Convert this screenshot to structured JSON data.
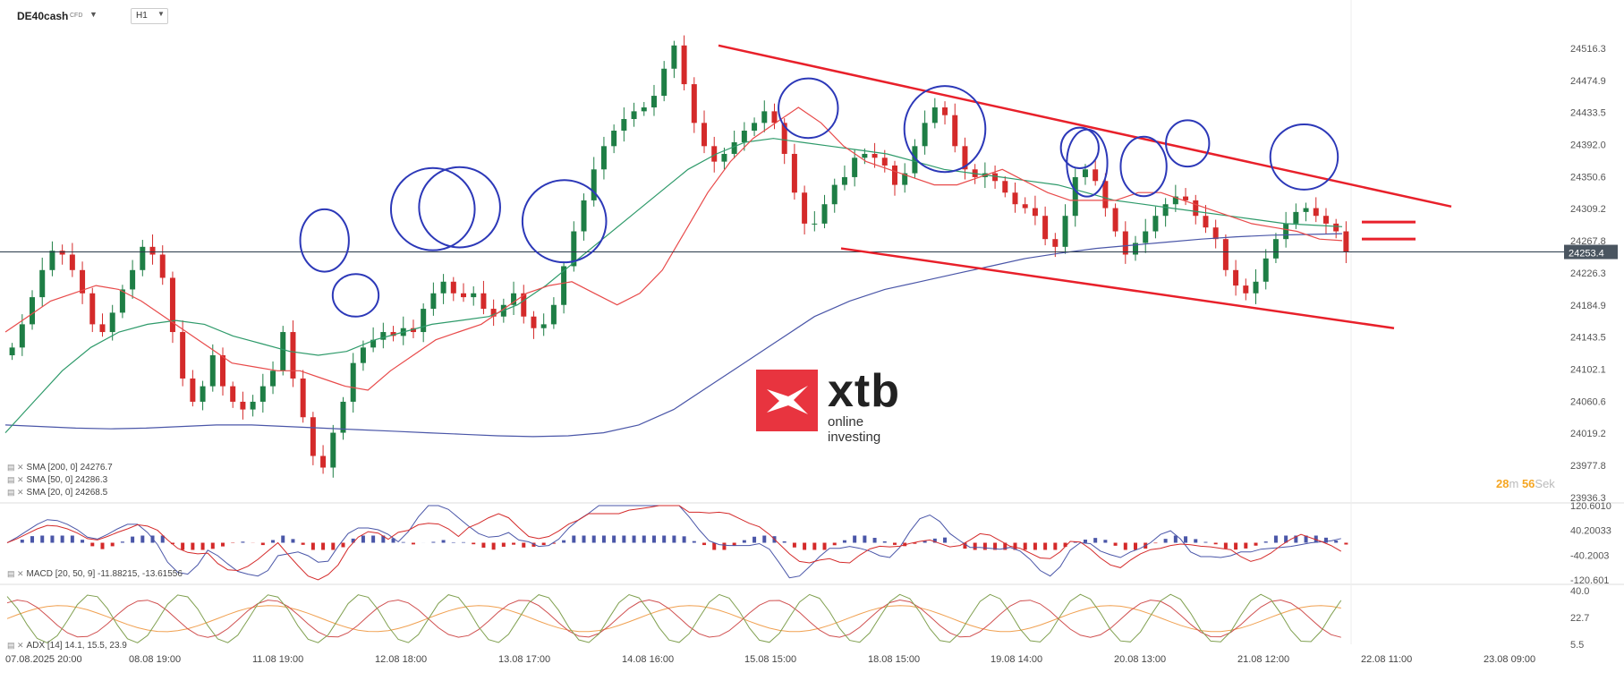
{
  "header": {
    "symbol": "DE40cash",
    "symbol_type": "CFD",
    "timeframe": "H1"
  },
  "countdown": {
    "minutes": "28",
    "min_unit": "m",
    "seconds": "56",
    "sec_unit": "Sek"
  },
  "logo": {
    "name": "xtb",
    "tagline": "online investing",
    "color": "#e8343f"
  },
  "indicators": {
    "sma200": "SMA [200,  0]  24276.7",
    "sma50": "SMA [50,  0]  24286.3",
    "sma20": "SMA [20,  0]  24268.5",
    "macd": "MACD [20,  50,  9]  -11.88215,  -13.61556",
    "adx": "ADX [14]  14.1,  15.5,  23.9"
  },
  "chart_data": {
    "type": "candlestick",
    "symbol": "DE40cash",
    "timeframe": "H1",
    "current_price": "24253.4",
    "price_axis_ticks": [
      "24516.3",
      "24474.9",
      "24433.5",
      "24392.0",
      "24350.6",
      "24309.2",
      "24267.8",
      "24226.3",
      "24184.9",
      "24143.5",
      "24102.1",
      "24060.6",
      "24019.2",
      "23977.8",
      "23936.3"
    ],
    "ylim": [
      23936.3,
      24516.3
    ],
    "time_axis_labels": [
      "07.08.2025  20:00",
      "08.08  19:00",
      "11.08  19:00",
      "12.08  18:00",
      "13.08  17:00",
      "14.08  16:00",
      "15.08  15:00",
      "18.08  15:00",
      "19.08  14:00",
      "20.08  13:00",
      "21.08  12:00",
      "22.08  11:00",
      "23.08  09:00"
    ],
    "close_path": [
      24130,
      24160,
      24195,
      24230,
      24255,
      24250,
      24230,
      24200,
      24160,
      24150,
      24175,
      24205,
      24230,
      24260,
      24250,
      24220,
      24150,
      24090,
      24060,
      24080,
      24120,
      24080,
      24060,
      24050,
      24060,
      24080,
      24100,
      24150,
      24090,
      24040,
      23990,
      23975,
      24020,
      24060,
      24110,
      24130,
      24140,
      24150,
      24145,
      24155,
      24150,
      24180,
      24200,
      24215,
      24200,
      24195,
      24200,
      24180,
      24170,
      24185,
      24200,
      24170,
      24155,
      24160,
      24185,
      24235,
      24280,
      24320,
      24360,
      24390,
      24410,
      24425,
      24435,
      24440,
      24455,
      24490,
      24520,
      24470,
      24420,
      24390,
      24370,
      24380,
      24395,
      24410,
      24420,
      24435,
      24420,
      24380,
      24330,
      24290,
      24290,
      24315,
      24340,
      24350,
      24375,
      24380,
      24375,
      24365,
      24340,
      24355,
      24390,
      24420,
      24440,
      24430,
      24390,
      24360,
      24350,
      24355,
      24345,
      24330,
      24315,
      24310,
      24300,
      24270,
      24260,
      24300,
      24350,
      24360,
      24345,
      24310,
      24280,
      24250,
      24265,
      24280,
      24300,
      24315,
      24325,
      24320,
      24300,
      24285,
      24270,
      24230,
      24210,
      24200,
      24215,
      24245,
      24270,
      24290,
      24305,
      24310,
      24300,
      24290,
      24280,
      24253
    ],
    "sma20_path": [
      24150,
      24170,
      24190,
      24200,
      24210,
      24205,
      24190,
      24170,
      24150,
      24130,
      24110,
      24105,
      24100,
      24100,
      24090,
      24080,
      24075,
      24100,
      24120,
      24140,
      24150,
      24160,
      24180,
      24200,
      24210,
      24215,
      24200,
      24185,
      24200,
      24230,
      24280,
      24330,
      24370,
      24400,
      24420,
      24440,
      24420,
      24390,
      24370,
      24360,
      24350,
      24340,
      24340,
      24350,
      24360,
      24345,
      24330,
      24320,
      24320,
      24320,
      24330,
      24330,
      24320,
      24310,
      24300,
      24290,
      24285,
      24280,
      24270,
      24268
    ],
    "sma50_path": [
      24020,
      24060,
      24100,
      24130,
      24150,
      24160,
      24165,
      24160,
      24145,
      24135,
      24125,
      24120,
      24125,
      24140,
      24150,
      24160,
      24165,
      24170,
      24185,
      24210,
      24240,
      24270,
      24300,
      24330,
      24360,
      24380,
      24395,
      24400,
      24395,
      24390,
      24385,
      24380,
      24370,
      24360,
      24355,
      24350,
      24345,
      24340,
      24330,
      24320,
      24315,
      24310,
      24305,
      24300,
      24295,
      24290,
      24288,
      24286
    ],
    "sma200_path": [
      24030,
      24028,
      24026,
      24025,
      24026,
      24028,
      24030,
      24030,
      24028,
      24026,
      24024,
      24022,
      24020,
      24018,
      24016,
      24015,
      24016,
      24020,
      24030,
      24050,
      24080,
      24110,
      24140,
      24170,
      24190,
      24205,
      24215,
      24225,
      24235,
      24245,
      24252,
      24258,
      24262,
      24266,
      24270,
      24273,
      24275,
      24276,
      24277
    ],
    "macd": {
      "ylim": [
        -120.601,
        120.601
      ],
      "ticks": [
        "120.6010",
        "40.20033",
        "-40.2003",
        "-120.601"
      ],
      "value": -11.88215,
      "signal": -13.61556
    },
    "adx": {
      "ylim": [
        5.5,
        40.0
      ],
      "ticks": [
        "40.0",
        "22.7",
        "5.5"
      ],
      "adx": 14.1,
      "plus_di": 15.5,
      "minus_di": 23.9
    },
    "colors": {
      "up": "#1e7e45",
      "down": "#d42a2a",
      "sma20": "#e84a4a",
      "sma50": "#2e9a6a",
      "sma200": "#4a56a8",
      "trendline": "#e8202a",
      "circle": "#2c38b8"
    },
    "annotations": {
      "pattern": "descending channel",
      "circles": 12
    }
  }
}
